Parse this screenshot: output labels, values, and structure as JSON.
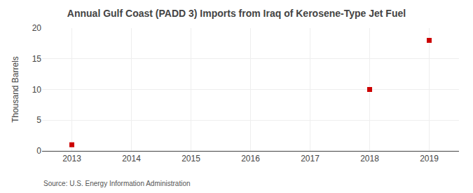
{
  "chart_data": {
    "type": "scatter",
    "title": "Annual Gulf Coast (PADD 3) Imports from Iraq of Kerosene-Type Jet Fuel",
    "ylabel": "Thousand Barrels",
    "annotations": [
      "Source: U.S. Energy Information Administration"
    ],
    "x": [
      2013,
      2018,
      2019
    ],
    "values": [
      1,
      10,
      18
    ],
    "color": "#cc0000",
    "marker": "square",
    "xlim": [
      2012.5,
      2019.5
    ],
    "xticks": [
      2013,
      2014,
      2015,
      2016,
      2017,
      2018,
      2019
    ],
    "ylim": [
      0,
      20
    ],
    "yticks": [
      0,
      5,
      10,
      15,
      20
    ],
    "grid": true
  }
}
